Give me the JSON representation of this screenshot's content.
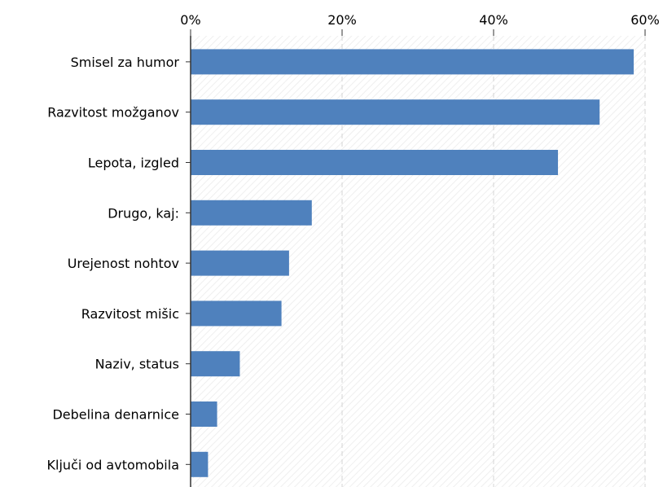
{
  "chart_data": {
    "type": "bar",
    "orientation": "horizontal",
    "title": "",
    "xlabel": "",
    "ylabel": "",
    "xlim": [
      0,
      60
    ],
    "x_ticks": [
      0,
      20,
      40,
      60
    ],
    "x_tick_labels": [
      "0%",
      "20%",
      "40%",
      "60%"
    ],
    "categories": [
      "Smisel za humor",
      "Razvitost možganov",
      "Lepota, izgled",
      "Drugo, kaj:",
      "Urejenost nohtov",
      "Razvitost mišic",
      "Naziv, status",
      "Debelina denarnice",
      "Ključi od avtomobila"
    ],
    "values": [
      58.5,
      54,
      48.5,
      16,
      13,
      12,
      6.5,
      3.5,
      2.3
    ],
    "bar_color": "#4f81bd",
    "grid": true,
    "legend": "none"
  }
}
